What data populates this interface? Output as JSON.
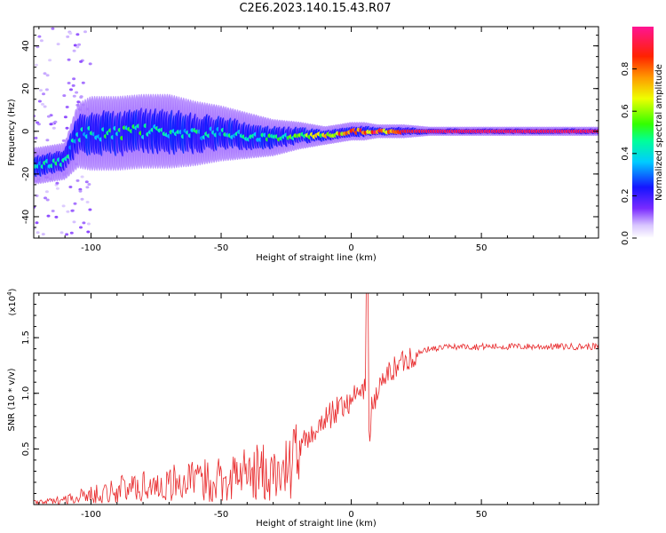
{
  "title": "C2E6.2023.140.15.43.R07",
  "colors": {
    "snr_line": "#e8292b",
    "axis": "#000000"
  },
  "chart_data": [
    {
      "type": "heatmap",
      "title": "C2E6.2023.140.15.43.R07",
      "xlabel": "Height of straight line (km)",
      "ylabel": "Frequency (Hz)",
      "xlim": [
        -122,
        95
      ],
      "ylim": [
        -50,
        49
      ],
      "x_ticks": [
        -100,
        -50,
        0,
        50
      ],
      "x_tick_labels": [
        "-100",
        "-50",
        "0",
        "50"
      ],
      "y_ticks": [
        -40,
        -20,
        0,
        20,
        40
      ],
      "y_tick_labels": [
        "-40",
        "-20",
        "0",
        "20",
        "40"
      ],
      "colorbar": {
        "label": "Normalized spectral amplitude",
        "range": [
          0,
          1
        ],
        "ticks": [
          0.0,
          0.2,
          0.4,
          0.6,
          0.8
        ],
        "tick_labels": [
          "0.0",
          "0.2",
          "0.4",
          "0.6",
          "0.8"
        ]
      },
      "ridge": {
        "description_x": [
          -120,
          -115,
          -110,
          -105,
          -100,
          -90,
          -80,
          -70,
          -60,
          -50,
          -40,
          -30,
          -20,
          -10,
          -5,
          0,
          5,
          10,
          20,
          30,
          50,
          70,
          95
        ],
        "frequency": [
          -16,
          -15,
          -14,
          -2,
          -1,
          -1,
          0,
          0,
          -1,
          -1,
          -2,
          -3,
          -2,
          -2,
          -1,
          0,
          0,
          0,
          0,
          0,
          0,
          0,
          0
        ],
        "spread": [
          4,
          4,
          4,
          7,
          8,
          8,
          8,
          8,
          7,
          6,
          5,
          4,
          3,
          2,
          2,
          2,
          2,
          1.5,
          1.5,
          1,
          1,
          1,
          1
        ],
        "amplitude": [
          0.45,
          0.45,
          0.45,
          0.4,
          0.45,
          0.5,
          0.5,
          0.45,
          0.45,
          0.45,
          0.45,
          0.5,
          0.55,
          0.7,
          0.8,
          0.9,
          0.85,
          0.9,
          0.9,
          0.95,
          0.95,
          0.95,
          0.95
        ]
      }
    },
    {
      "type": "line",
      "xlabel": "Height of straight line (km)",
      "ylabel": "SNR (10 * v/v)",
      "y_scale_label": "(x10",
      "y_scale_exp": "4",
      "xlim": [
        -122,
        95
      ],
      "ylim": [
        0,
        1.9
      ],
      "x_ticks": [
        -100,
        -50,
        0,
        50
      ],
      "x_tick_labels": [
        "-100",
        "-50",
        "0",
        "50"
      ],
      "y_ticks": [
        0.5,
        1.0,
        1.5
      ],
      "y_tick_labels": [
        "0.5",
        "1.0",
        "1.5"
      ],
      "series": [
        {
          "x": [
            -122,
            -115,
            -110,
            -105,
            -100,
            -95,
            -90,
            -85,
            -80,
            -75,
            -70,
            -65,
            -60,
            -55,
            -50,
            -45,
            -40,
            -35,
            -30,
            -27,
            -24,
            -21,
            -18,
            -15,
            -12,
            -9,
            -6,
            -3,
            0,
            3,
            5,
            6,
            7,
            8,
            10,
            12,
            15,
            18,
            20,
            22,
            25,
            28,
            30,
            35,
            40,
            50,
            60,
            70,
            80,
            95
          ],
          "y": [
            0.02,
            0.03,
            0.05,
            0.07,
            0.09,
            0.11,
            0.13,
            0.15,
            0.17,
            0.18,
            0.19,
            0.2,
            0.21,
            0.22,
            0.24,
            0.26,
            0.28,
            0.29,
            0.27,
            0.25,
            0.35,
            0.45,
            0.55,
            0.65,
            0.72,
            0.78,
            0.84,
            0.9,
            0.95,
            1.0,
            1.05,
            1.1,
            0.6,
            0.9,
            1.0,
            1.1,
            1.2,
            1.25,
            1.3,
            1.32,
            1.35,
            1.38,
            1.4,
            1.41,
            1.42,
            1.42,
            1.42,
            1.42,
            1.42,
            1.42
          ]
        }
      ]
    }
  ]
}
